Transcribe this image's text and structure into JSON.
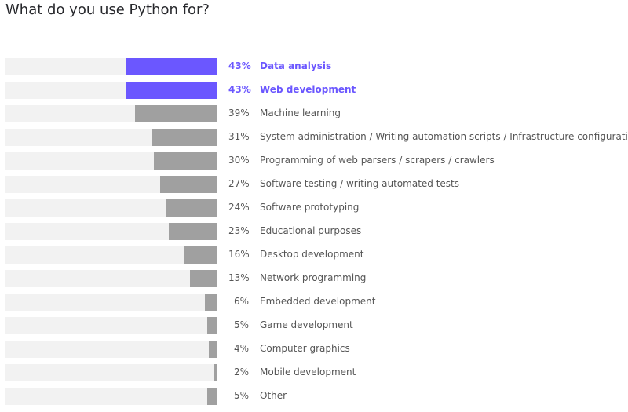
{
  "chart_data": {
    "type": "bar",
    "orientation": "horizontal",
    "title": "What do you use Python for?",
    "unit": "%",
    "xlim": [
      0,
      100
    ],
    "grid": false,
    "colors": {
      "highlight": "#6b57ff",
      "default": "#a0a0a0",
      "track": "#f2f2f2"
    },
    "categories": [
      "Data analysis",
      "Web development",
      "Machine learning",
      "System administration / Writing automation scripts / Infrastructure configuration",
      "Programming of web parsers / scrapers / crawlers",
      "Software testing / writing automated tests",
      "Software prototyping",
      "Educational purposes",
      "Desktop development",
      "Network programming",
      "Embedded development",
      "Game development",
      "Computer graphics",
      "Mobile development",
      "Other"
    ],
    "values": [
      43,
      43,
      39,
      31,
      30,
      27,
      24,
      23,
      16,
      13,
      6,
      5,
      4,
      2,
      5
    ],
    "value_labels": [
      "43%",
      "43%",
      "39%",
      "31%",
      "30%",
      "27%",
      "24%",
      "23%",
      "16%",
      "13%",
      "6%",
      "5%",
      "4%",
      "2%",
      "5%"
    ],
    "highlighted": [
      0,
      1
    ]
  }
}
